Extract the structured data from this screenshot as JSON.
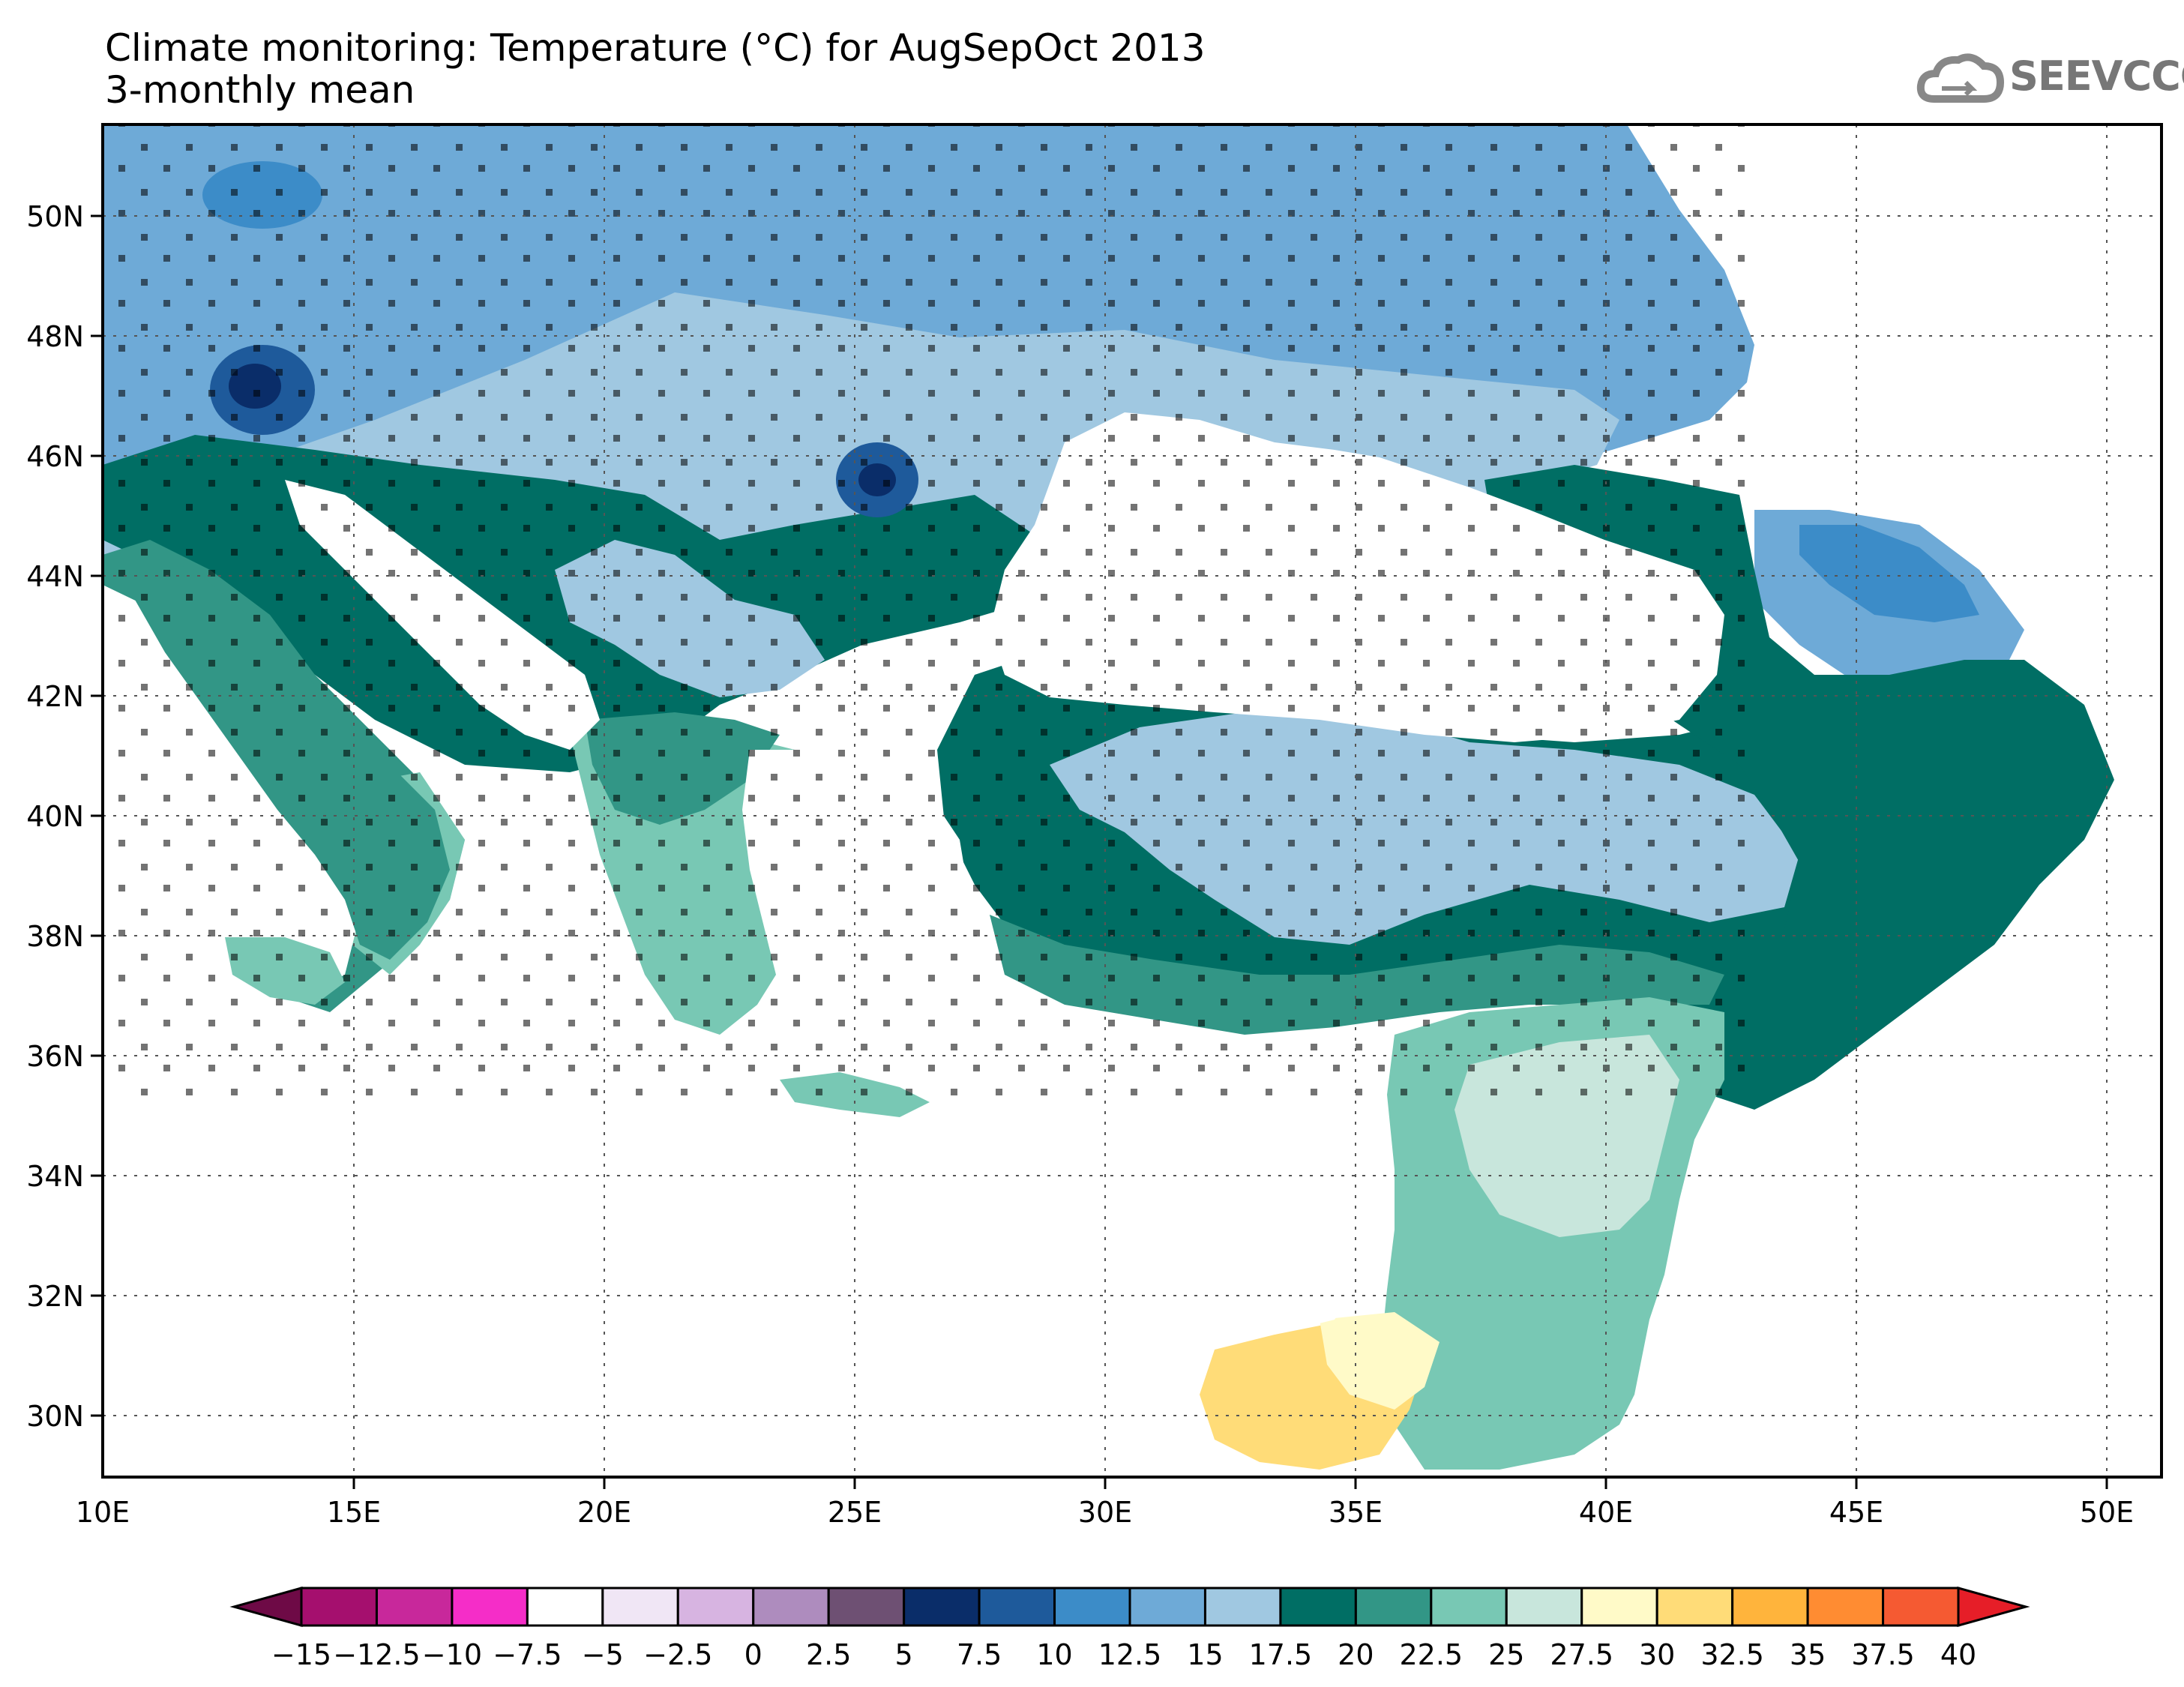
{
  "title_line1": "Climate monitoring: Temperature (°C) for AugSepOct 2013",
  "title_line2": "3-monthly mean",
  "logo_text": "SEEVCCC",
  "lat_labels": [
    "50N",
    "48N",
    "46N",
    "44N",
    "42N",
    "40N",
    "38N",
    "36N",
    "34N",
    "32N",
    "30N"
  ],
  "lon_labels": [
    "10E",
    "15E",
    "20E",
    "25E",
    "30E",
    "35E",
    "40E",
    "45E",
    "50E"
  ],
  "colorbar": {
    "labels": [
      "-15",
      "-12.5",
      "-10",
      "-7.5",
      "-5",
      "-2.5",
      "0",
      "2.5",
      "5",
      "7.5",
      "10",
      "12.5",
      "15",
      "17.5",
      "20",
      "22.5",
      "25",
      "27.5",
      "30",
      "32.5",
      "35",
      "37.5",
      "40"
    ],
    "colors": [
      "#6e0a46",
      "#a50f6e",
      "#c8289b",
      "#f52dc8",
      "#ffffff",
      "#f0e6f5",
      "#d7b4e1",
      "#ae8cbe",
      "#6e5073",
      "#0a2d69",
      "#1e5a9b",
      "#3c8cc8",
      "#6eaad7",
      "#a0c8e1",
      "#006e64",
      "#329686",
      "#78c8b4",
      "#c8e6dc",
      "#fffac8",
      "#ffdc78",
      "#ffb43c",
      "#ff8c32",
      "#f55a32",
      "#e61e28"
    ],
    "under_color": "#6e0a46",
    "over_color": "#e61e28"
  },
  "colors": {
    "land_base": "#6eaad7",
    "water": "#ffffff"
  }
}
